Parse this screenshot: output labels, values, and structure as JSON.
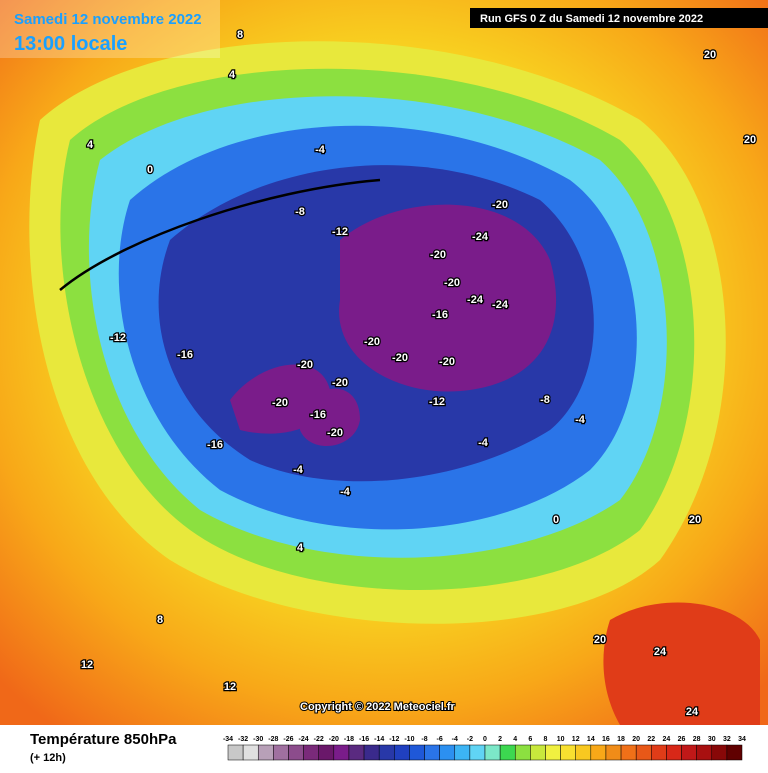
{
  "header": {
    "title": "Samedi 12 novembre 2022",
    "subtitle": "13:00 locale",
    "run": "Run GFS 0 Z du Samedi 12 novembre 2022"
  },
  "copyright": "Copyright © 2022 Meteociel.fr",
  "footer": {
    "variable": "Température 850hPa",
    "lead": "(+ 12h)"
  },
  "legend": {
    "ticks": [
      -34,
      -32,
      -30,
      -28,
      -26,
      -24,
      -22,
      -20,
      -18,
      -16,
      -14,
      -12,
      -10,
      -8,
      -6,
      -4,
      -2,
      0,
      2,
      4,
      6,
      8,
      10,
      12,
      14,
      16,
      18,
      20,
      22,
      24,
      26,
      28,
      30,
      32,
      34
    ],
    "colors": [
      "#c8c8c8",
      "#e0e0e0",
      "#b8a0b8",
      "#a070a0",
      "#8c4c8c",
      "#7a2a7a",
      "#6a186a",
      "#7a1c8a",
      "#5a2a80",
      "#3a2a8c",
      "#2838a8",
      "#2040c0",
      "#1f58d8",
      "#2a74e8",
      "#2c90f0",
      "#3cb4f4",
      "#60d4f4",
      "#7ce8c8",
      "#3cd850",
      "#8ce040",
      "#c8e83c",
      "#f0f040",
      "#f8e030",
      "#f8c820",
      "#f8a818",
      "#f08c18",
      "#f07018",
      "#e85818",
      "#e03c18",
      "#d82818",
      "#c01818",
      "#a81010",
      "#880808",
      "#600000"
    ]
  },
  "map_labels": [
    8,
    4,
    4,
    0,
    -4,
    -8,
    -12,
    -20,
    -24,
    -20,
    -20,
    -24,
    -24,
    -16,
    -20,
    -20,
    -20,
    -20,
    -20,
    -20,
    -16,
    -20,
    -16,
    -12,
    -16,
    -12,
    -8,
    -4,
    -4,
    -4,
    -4,
    0,
    4,
    8,
    12,
    12,
    20,
    24,
    24,
    20,
    20,
    20
  ]
}
